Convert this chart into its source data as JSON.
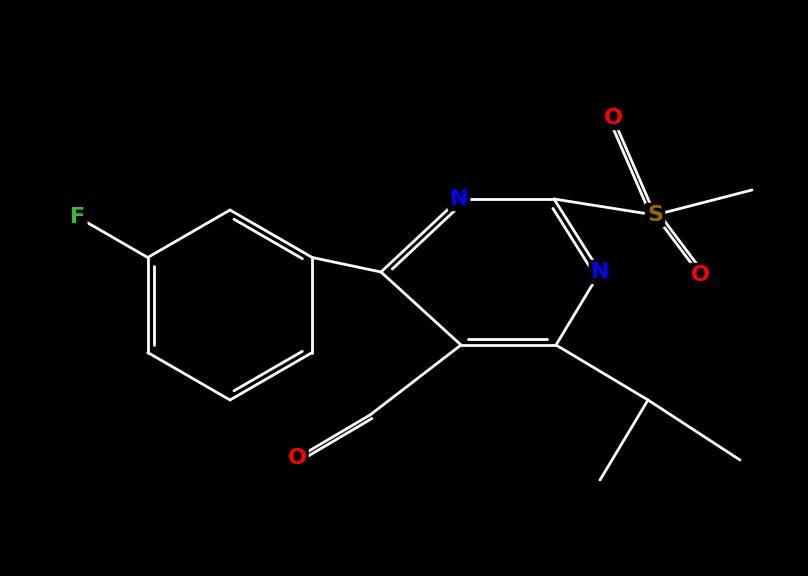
{
  "bg_color": "#000000",
  "figsize": [
    8.08,
    5.76
  ],
  "dpi": 100,
  "bond_color": "#ffffff",
  "bond_lw": 2.0,
  "colors": {
    "N": "#0000ff",
    "O": "#ff0000",
    "S": "#996600",
    "F": "#33bb33",
    "C": "#ffffff"
  },
  "font_size": 14,
  "font_weight": "bold"
}
